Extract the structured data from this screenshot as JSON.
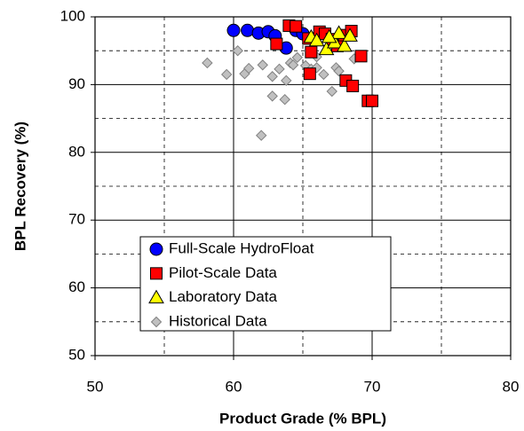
{
  "chart_data": {
    "type": "scatter",
    "x_label": "Product Grade (% BPL)",
    "y_label": "BPL Recovery (%)",
    "xlim": [
      50,
      80
    ],
    "xticks": [
      50,
      60,
      70,
      80
    ],
    "x_minor_grid": [
      55,
      65,
      75
    ],
    "ylim": [
      50,
      100
    ],
    "yticks": [
      50,
      60,
      70,
      80,
      90,
      100
    ],
    "y_minor_grid": [
      55,
      65,
      75,
      85,
      95
    ],
    "grid": true,
    "legend": "bottom-left",
    "series": [
      {
        "name": "Full-Scale HydroFloat",
        "color": "#0000ff",
        "marker": "circle",
        "x": [
          60.0,
          61.0,
          61.8,
          62.5,
          63.0,
          63.8,
          64.5,
          65.0
        ],
        "values": [
          98.0,
          98.0,
          97.6,
          97.8,
          97.2,
          95.4,
          98.0,
          97.5
        ]
      },
      {
        "name": "Pilot-Scale Data",
        "color": "#ff0000",
        "marker": "square",
        "x": [
          63.1,
          64.0,
          64.5,
          65.4,
          65.6,
          65.5,
          66.2,
          66.6,
          67.5,
          68.0,
          68.5,
          68.1,
          68.6,
          69.2,
          69.7,
          70.0,
          67.1
        ],
        "values": [
          96.0,
          98.7,
          98.6,
          96.8,
          94.8,
          91.6,
          97.8,
          97.5,
          95.7,
          97.3,
          97.9,
          90.6,
          89.8,
          94.2,
          87.6,
          87.6,
          96.7
        ]
      },
      {
        "name": "Laboratory Data",
        "color": "#ffff00",
        "marker": "triangle",
        "x": [
          65.6,
          66.0,
          66.7,
          67.3,
          67.6,
          68.0,
          68.4,
          66.9
        ],
        "values": [
          97.0,
          96.5,
          95.2,
          96.2,
          97.6,
          95.7,
          97.2,
          97.0
        ]
      },
      {
        "name": "Historical Data",
        "color": "#c0c0c0",
        "marker": "diamond",
        "x": [
          58.1,
          59.5,
          60.3,
          60.8,
          61.1,
          62.1,
          62.8,
          62.8,
          63.3,
          63.7,
          63.8,
          64.1,
          64.3,
          64.6,
          65.2,
          65.6,
          66.0,
          66.5,
          67.1,
          67.4,
          67.6,
          68.7,
          62.0,
          66.0
        ],
        "values": [
          93.2,
          91.5,
          95.0,
          91.6,
          92.4,
          92.9,
          91.2,
          88.3,
          92.3,
          87.8,
          90.6,
          93.2,
          92.9,
          94.0,
          92.8,
          92.3,
          92.5,
          91.5,
          89.0,
          92.5,
          92.0,
          93.8,
          82.5,
          94.1
        ]
      }
    ]
  }
}
